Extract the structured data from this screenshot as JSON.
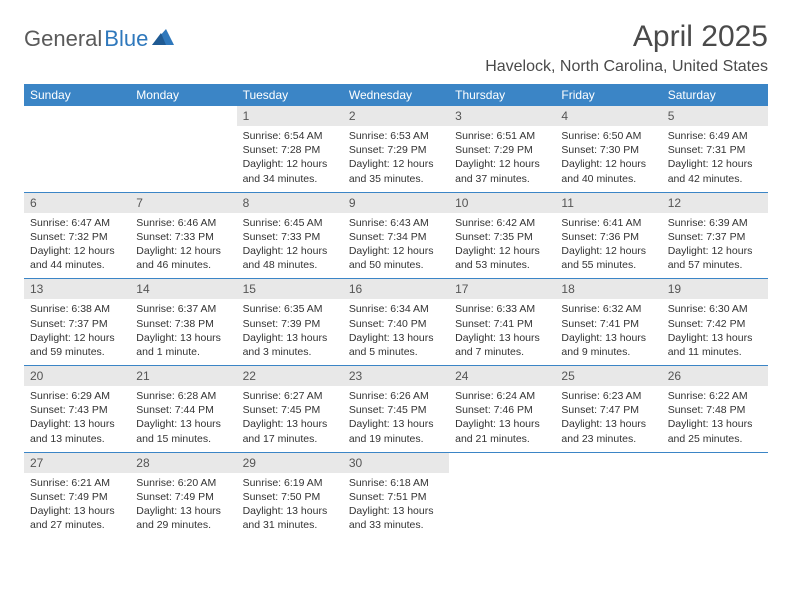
{
  "logo": {
    "text1": "General",
    "text2": "Blue"
  },
  "title": "April 2025",
  "location": "Havelock, North Carolina, United States",
  "colors": {
    "header_bg": "#3b85c6",
    "header_text": "#ffffff",
    "daynum_bg": "#e8e8e8",
    "border": "#3b85c6",
    "logo_gray": "#5a5a5a",
    "logo_blue": "#2f78bc"
  },
  "weekdays": [
    "Sunday",
    "Monday",
    "Tuesday",
    "Wednesday",
    "Thursday",
    "Friday",
    "Saturday"
  ],
  "weeks": [
    [
      null,
      null,
      {
        "n": "1",
        "sr": "Sunrise: 6:54 AM",
        "ss": "Sunset: 7:28 PM",
        "d1": "Daylight: 12 hours",
        "d2": "and 34 minutes."
      },
      {
        "n": "2",
        "sr": "Sunrise: 6:53 AM",
        "ss": "Sunset: 7:29 PM",
        "d1": "Daylight: 12 hours",
        "d2": "and 35 minutes."
      },
      {
        "n": "3",
        "sr": "Sunrise: 6:51 AM",
        "ss": "Sunset: 7:29 PM",
        "d1": "Daylight: 12 hours",
        "d2": "and 37 minutes."
      },
      {
        "n": "4",
        "sr": "Sunrise: 6:50 AM",
        "ss": "Sunset: 7:30 PM",
        "d1": "Daylight: 12 hours",
        "d2": "and 40 minutes."
      },
      {
        "n": "5",
        "sr": "Sunrise: 6:49 AM",
        "ss": "Sunset: 7:31 PM",
        "d1": "Daylight: 12 hours",
        "d2": "and 42 minutes."
      }
    ],
    [
      {
        "n": "6",
        "sr": "Sunrise: 6:47 AM",
        "ss": "Sunset: 7:32 PM",
        "d1": "Daylight: 12 hours",
        "d2": "and 44 minutes."
      },
      {
        "n": "7",
        "sr": "Sunrise: 6:46 AM",
        "ss": "Sunset: 7:33 PM",
        "d1": "Daylight: 12 hours",
        "d2": "and 46 minutes."
      },
      {
        "n": "8",
        "sr": "Sunrise: 6:45 AM",
        "ss": "Sunset: 7:33 PM",
        "d1": "Daylight: 12 hours",
        "d2": "and 48 minutes."
      },
      {
        "n": "9",
        "sr": "Sunrise: 6:43 AM",
        "ss": "Sunset: 7:34 PM",
        "d1": "Daylight: 12 hours",
        "d2": "and 50 minutes."
      },
      {
        "n": "10",
        "sr": "Sunrise: 6:42 AM",
        "ss": "Sunset: 7:35 PM",
        "d1": "Daylight: 12 hours",
        "d2": "and 53 minutes."
      },
      {
        "n": "11",
        "sr": "Sunrise: 6:41 AM",
        "ss": "Sunset: 7:36 PM",
        "d1": "Daylight: 12 hours",
        "d2": "and 55 minutes."
      },
      {
        "n": "12",
        "sr": "Sunrise: 6:39 AM",
        "ss": "Sunset: 7:37 PM",
        "d1": "Daylight: 12 hours",
        "d2": "and 57 minutes."
      }
    ],
    [
      {
        "n": "13",
        "sr": "Sunrise: 6:38 AM",
        "ss": "Sunset: 7:37 PM",
        "d1": "Daylight: 12 hours",
        "d2": "and 59 minutes."
      },
      {
        "n": "14",
        "sr": "Sunrise: 6:37 AM",
        "ss": "Sunset: 7:38 PM",
        "d1": "Daylight: 13 hours",
        "d2": "and 1 minute."
      },
      {
        "n": "15",
        "sr": "Sunrise: 6:35 AM",
        "ss": "Sunset: 7:39 PM",
        "d1": "Daylight: 13 hours",
        "d2": "and 3 minutes."
      },
      {
        "n": "16",
        "sr": "Sunrise: 6:34 AM",
        "ss": "Sunset: 7:40 PM",
        "d1": "Daylight: 13 hours",
        "d2": "and 5 minutes."
      },
      {
        "n": "17",
        "sr": "Sunrise: 6:33 AM",
        "ss": "Sunset: 7:41 PM",
        "d1": "Daylight: 13 hours",
        "d2": "and 7 minutes."
      },
      {
        "n": "18",
        "sr": "Sunrise: 6:32 AM",
        "ss": "Sunset: 7:41 PM",
        "d1": "Daylight: 13 hours",
        "d2": "and 9 minutes."
      },
      {
        "n": "19",
        "sr": "Sunrise: 6:30 AM",
        "ss": "Sunset: 7:42 PM",
        "d1": "Daylight: 13 hours",
        "d2": "and 11 minutes."
      }
    ],
    [
      {
        "n": "20",
        "sr": "Sunrise: 6:29 AM",
        "ss": "Sunset: 7:43 PM",
        "d1": "Daylight: 13 hours",
        "d2": "and 13 minutes."
      },
      {
        "n": "21",
        "sr": "Sunrise: 6:28 AM",
        "ss": "Sunset: 7:44 PM",
        "d1": "Daylight: 13 hours",
        "d2": "and 15 minutes."
      },
      {
        "n": "22",
        "sr": "Sunrise: 6:27 AM",
        "ss": "Sunset: 7:45 PM",
        "d1": "Daylight: 13 hours",
        "d2": "and 17 minutes."
      },
      {
        "n": "23",
        "sr": "Sunrise: 6:26 AM",
        "ss": "Sunset: 7:45 PM",
        "d1": "Daylight: 13 hours",
        "d2": "and 19 minutes."
      },
      {
        "n": "24",
        "sr": "Sunrise: 6:24 AM",
        "ss": "Sunset: 7:46 PM",
        "d1": "Daylight: 13 hours",
        "d2": "and 21 minutes."
      },
      {
        "n": "25",
        "sr": "Sunrise: 6:23 AM",
        "ss": "Sunset: 7:47 PM",
        "d1": "Daylight: 13 hours",
        "d2": "and 23 minutes."
      },
      {
        "n": "26",
        "sr": "Sunrise: 6:22 AM",
        "ss": "Sunset: 7:48 PM",
        "d1": "Daylight: 13 hours",
        "d2": "and 25 minutes."
      }
    ],
    [
      {
        "n": "27",
        "sr": "Sunrise: 6:21 AM",
        "ss": "Sunset: 7:49 PM",
        "d1": "Daylight: 13 hours",
        "d2": "and 27 minutes."
      },
      {
        "n": "28",
        "sr": "Sunrise: 6:20 AM",
        "ss": "Sunset: 7:49 PM",
        "d1": "Daylight: 13 hours",
        "d2": "and 29 minutes."
      },
      {
        "n": "29",
        "sr": "Sunrise: 6:19 AM",
        "ss": "Sunset: 7:50 PM",
        "d1": "Daylight: 13 hours",
        "d2": "and 31 minutes."
      },
      {
        "n": "30",
        "sr": "Sunrise: 6:18 AM",
        "ss": "Sunset: 7:51 PM",
        "d1": "Daylight: 13 hours",
        "d2": "and 33 minutes."
      },
      null,
      null,
      null
    ]
  ]
}
